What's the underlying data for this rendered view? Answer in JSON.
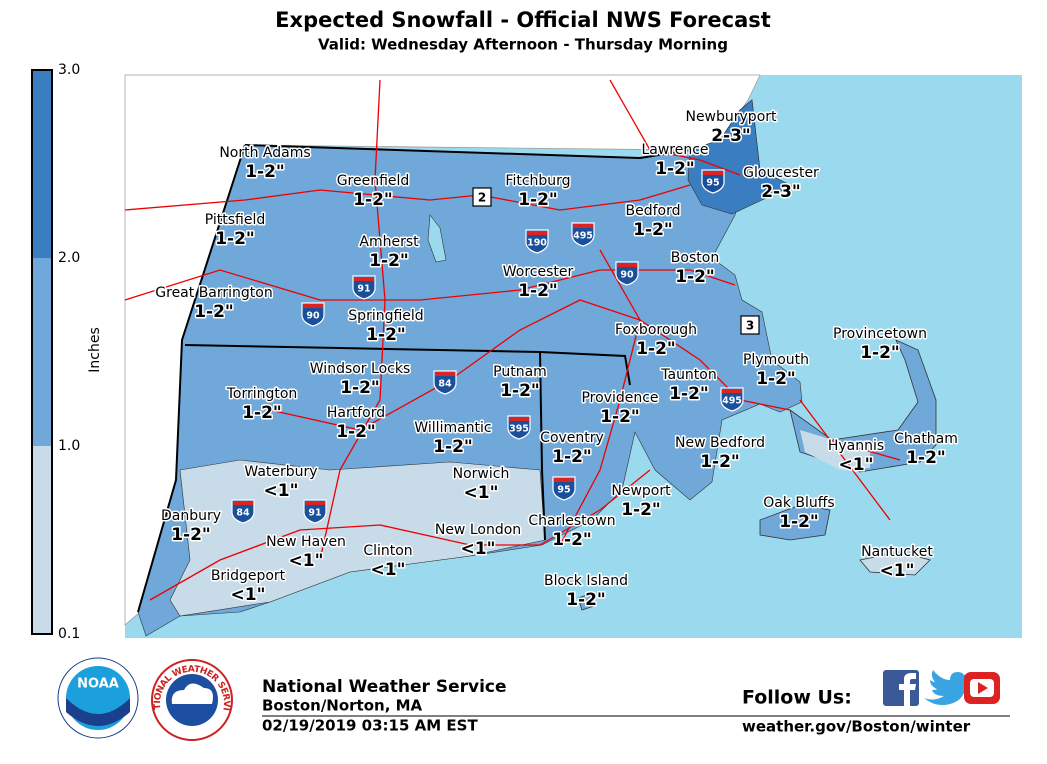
{
  "header": {
    "title": "Expected Snowfall - Official NWS Forecast",
    "subtitle": "Valid: Wednesday Afternoon - Thursday Morning"
  },
  "legend": {
    "title": "Inches",
    "ticks": [
      "3.0",
      "2.0",
      "1.0",
      "0.1"
    ],
    "colors": [
      "#3a7dc0",
      "#6fa8d9",
      "#c7dbe9"
    ]
  },
  "locations": [
    {
      "name": "North Adams",
      "amount": "1-2\""
    },
    {
      "name": "Greenfield",
      "amount": "1-2\""
    },
    {
      "name": "Fitchburg",
      "amount": "1-2\""
    },
    {
      "name": "Lawrence",
      "amount": "1-2\""
    },
    {
      "name": "Newburyport",
      "amount": "2-3\""
    },
    {
      "name": "Gloucester",
      "amount": "2-3\""
    },
    {
      "name": "Pittsfield",
      "amount": "1-2\""
    },
    {
      "name": "Bedford",
      "amount": "1-2\""
    },
    {
      "name": "Amherst",
      "amount": "1-2\""
    },
    {
      "name": "Boston",
      "amount": "1-2\""
    },
    {
      "name": "Worcester",
      "amount": "1-2\""
    },
    {
      "name": "Great Barrington",
      "amount": "1-2\""
    },
    {
      "name": "Springfield",
      "amount": "1-2\""
    },
    {
      "name": "Foxborough",
      "amount": "1-2\""
    },
    {
      "name": "Provincetown",
      "amount": "1-2\""
    },
    {
      "name": "Windsor Locks",
      "amount": "1-2\""
    },
    {
      "name": "Putnam",
      "amount": "1-2\""
    },
    {
      "name": "Plymouth",
      "amount": "1-2\""
    },
    {
      "name": "Torrington",
      "amount": "1-2\""
    },
    {
      "name": "Taunton",
      "amount": "1-2\""
    },
    {
      "name": "Providence",
      "amount": "1-2\""
    },
    {
      "name": "Hartford",
      "amount": "1-2\""
    },
    {
      "name": "Willimantic",
      "amount": "1-2\""
    },
    {
      "name": "Coventry",
      "amount": "1-2\""
    },
    {
      "name": "New Bedford",
      "amount": "1-2\""
    },
    {
      "name": "Hyannis",
      "amount": "<1\""
    },
    {
      "name": "Chatham",
      "amount": "1-2\""
    },
    {
      "name": "Waterbury",
      "amount": "<1\""
    },
    {
      "name": "Norwich",
      "amount": "<1\""
    },
    {
      "name": "Newport",
      "amount": "1-2\""
    },
    {
      "name": "Oak Bluffs",
      "amount": "1-2\""
    },
    {
      "name": "Danbury",
      "amount": "1-2\""
    },
    {
      "name": "Charlestown",
      "amount": "1-2\""
    },
    {
      "name": "New London",
      "amount": "<1\""
    },
    {
      "name": "New Haven",
      "amount": "<1\""
    },
    {
      "name": "Clinton",
      "amount": "<1\""
    },
    {
      "name": "Nantucket",
      "amount": "<1\""
    },
    {
      "name": "Bridgeport",
      "amount": "<1\""
    },
    {
      "name": "Block Island",
      "amount": "1-2\""
    }
  ],
  "shields": [
    "2",
    "3",
    "190",
    "495",
    "90",
    "95",
    "91",
    "90",
    "84",
    "395",
    "495",
    "95",
    "84",
    "91"
  ],
  "footer": {
    "noaa": "NOAA",
    "nws_ring": "NATIONAL WEATHER SERVICE",
    "office": "National Weather Service",
    "location": "Boston/Norton, MA",
    "issued": "02/19/2019 03:15 AM EST",
    "follow": "Follow Us:",
    "url": "weather.gov/Boston/winter"
  }
}
